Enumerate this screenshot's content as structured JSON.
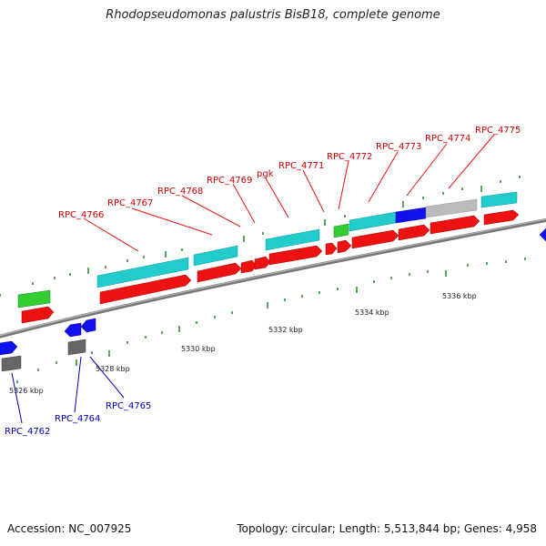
{
  "title": "Rhodopseudomonas palustris BisB18, complete genome",
  "footer": {
    "accession": "Accession: NC_007925",
    "info": "Topology: circular; Length: 5,513,844 bp; Genes: 4,958"
  },
  "colors": {
    "cds": "#ee1111",
    "rna": "#22cccc",
    "green_track": "#33cc33",
    "blue_track": "#1111ee",
    "gray_track": "#bbbbbb",
    "dark_gray_track": "#666666",
    "backbone": "#888888",
    "tick_major": "#228822",
    "label_forward": "#cc0000",
    "label_reverse": "#0000bb"
  },
  "ticks": [
    {
      "label": "5326 kbp"
    },
    {
      "label": "5328 kbp"
    },
    {
      "label": "5330 kbp"
    },
    {
      "label": "5332 kbp"
    },
    {
      "label": "5334 kbp"
    },
    {
      "label": "5336 kbp"
    }
  ],
  "forward_labels": [
    {
      "text": "RPC_4766"
    },
    {
      "text": "RPC_4767"
    },
    {
      "text": "RPC_4768"
    },
    {
      "text": "RPC_4769"
    },
    {
      "text": "pgk"
    },
    {
      "text": "RPC_4771"
    },
    {
      "text": "RPC_4772"
    },
    {
      "text": "RPC_4773"
    },
    {
      "text": "RPC_4774"
    },
    {
      "text": "RPC_4775"
    }
  ],
  "reverse_labels": [
    {
      "text": "RPC_4762"
    },
    {
      "text": "RPC_4764"
    },
    {
      "text": "RPC_4765"
    }
  ]
}
